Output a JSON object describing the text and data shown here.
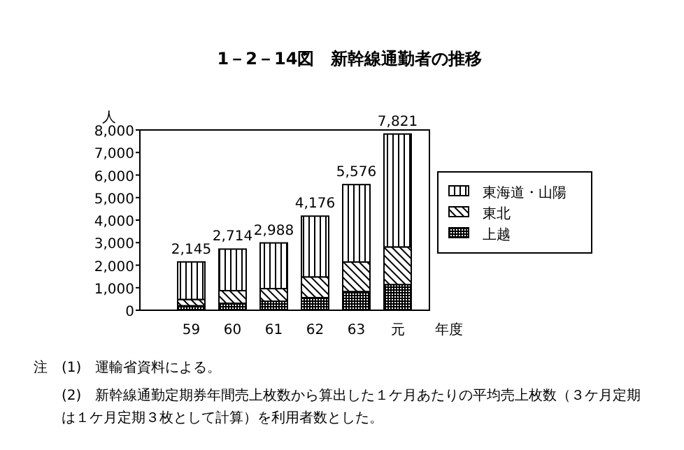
{
  "chart_data": {
    "type": "bar",
    "title": "1－2－14図　新幹線通勤者の推移",
    "ylabel": "人",
    "xlabel": "年度",
    "categories": [
      "59",
      "60",
      "61",
      "62",
      "63",
      "元"
    ],
    "stacked": true,
    "series": [
      {
        "name": "上越",
        "color": "#000000",
        "values": [
          200,
          310,
          400,
          560,
          830,
          1140
        ]
      },
      {
        "name": "東北",
        "color": "#000000",
        "values": [
          280,
          560,
          560,
          920,
          1310,
          1670
        ]
      },
      {
        "name": "東海道・山陽",
        "color": "#000000",
        "values": [
          1665,
          1844,
          2028,
          2696,
          3436,
          5011
        ]
      }
    ],
    "totals": [
      "2,145",
      "2,714",
      "2,988",
      "4,176",
      "5,576",
      "7,821"
    ],
    "ylim": [
      0,
      8000
    ],
    "yticks": [
      {
        "value": 0,
        "label": "0"
      },
      {
        "value": 1000,
        "label": "1,000"
      },
      {
        "value": 2000,
        "label": "2,000"
      },
      {
        "value": 3000,
        "label": "3,000"
      },
      {
        "value": 4000,
        "label": "4,000"
      },
      {
        "value": 5000,
        "label": "5,000"
      },
      {
        "value": 6000,
        "label": "6,000"
      },
      {
        "value": 7000,
        "label": "7,000"
      },
      {
        "value": 8000,
        "label": "8,000"
      }
    ],
    "legend": "right",
    "grid": false,
    "annotations": [
      "注",
      "(1)　運輸省資料による。",
      "(2)　新幹線通勤定期券年間売上枚数から算出した１ケ月あたりの平均売上枚数（３ケ月定期は１ケ月定期３枚として計算）を利用者数とした。"
    ]
  }
}
